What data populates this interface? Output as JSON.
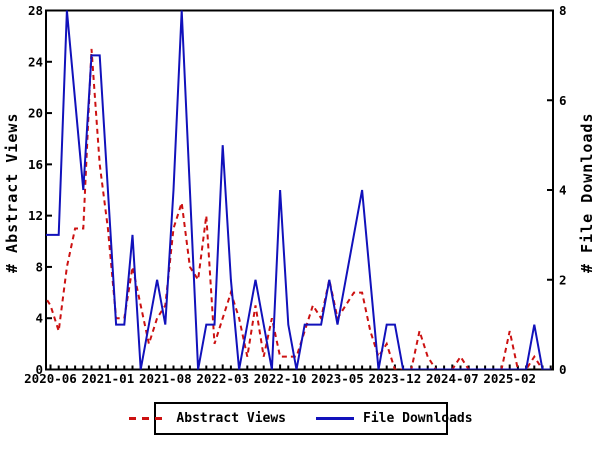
{
  "chart_data": {
    "type": "line",
    "title": "",
    "background_color": "#ffffff",
    "axis_color": "#000000",
    "grid": false,
    "x_axis": {
      "months": [
        "2020-05",
        "2020-06",
        "2020-07",
        "2020-08",
        "2020-09",
        "2020-10",
        "2020-11",
        "2020-12",
        "2021-01",
        "2021-02",
        "2021-03",
        "2021-04",
        "2021-05",
        "2021-06",
        "2021-07",
        "2021-08",
        "2021-09",
        "2021-10",
        "2021-11",
        "2021-12",
        "2022-01",
        "2022-02",
        "2022-03",
        "2022-04",
        "2022-05",
        "2022-06",
        "2022-07",
        "2022-08",
        "2022-09",
        "2022-10",
        "2022-11",
        "2022-12",
        "2023-01",
        "2023-02",
        "2023-03",
        "2023-04",
        "2023-05",
        "2023-06",
        "2023-07",
        "2023-08",
        "2023-09",
        "2023-10",
        "2023-11",
        "2023-12",
        "2024-01",
        "2024-02",
        "2024-03",
        "2024-04",
        "2024-05",
        "2024-06",
        "2024-07",
        "2024-08",
        "2024-09",
        "2024-10",
        "2024-11",
        "2024-12",
        "2025-01",
        "2025-02",
        "2025-03",
        "2025-04",
        "2025-05",
        "2025-06",
        "2025-07"
      ],
      "labeled_ticks": [
        "2020-06",
        "2021-01",
        "2021-08",
        "2022-03",
        "2022-10",
        "2023-05",
        "2023-12",
        "2024-07",
        "2025-02"
      ],
      "labeled_tick_indices": [
        1,
        8,
        15,
        22,
        29,
        36,
        43,
        50,
        57
      ]
    },
    "left_axis": {
      "label": "# Abstract Views",
      "min": 0,
      "max": 28,
      "ticks": [
        0,
        4,
        8,
        12,
        16,
        20,
        24,
        28
      ]
    },
    "right_axis": {
      "label": "# File Downloads",
      "min": 0,
      "max": 8,
      "ticks": [
        0,
        2,
        4,
        6,
        8
      ]
    },
    "series": [
      {
        "name": "Abstract Views",
        "axis": "left",
        "color": "#cc1111",
        "line_style": "dashed",
        "values": [
          6,
          5,
          3,
          8,
          11,
          11,
          25,
          16,
          11,
          4,
          4,
          8,
          5,
          2,
          4,
          5,
          11,
          13,
          8,
          7,
          12,
          2,
          4,
          6,
          4,
          1,
          5,
          1,
          4,
          1,
          1,
          1,
          3,
          5,
          4,
          7,
          4,
          5,
          6,
          6,
          3,
          1,
          2,
          0,
          0,
          0,
          3,
          1,
          0,
          0,
          0,
          1,
          0,
          0,
          0,
          0,
          0,
          3,
          0,
          0,
          1,
          0,
          0
        ]
      },
      {
        "name": "File Downloads",
        "axis": "right",
        "color": "#1111bb",
        "line_style": "solid",
        "values": [
          3,
          3,
          3,
          8,
          6,
          4,
          7,
          7,
          4,
          1,
          1,
          3,
          0,
          1,
          2,
          1,
          4,
          8,
          4,
          0,
          1,
          1,
          5,
          2,
          0,
          1,
          2,
          1,
          0,
          4,
          1,
          0,
          1,
          1,
          1,
          2,
          1,
          2,
          3,
          4,
          2,
          0,
          1,
          1,
          0,
          0,
          0,
          0,
          0,
          0,
          0,
          0,
          0,
          0,
          0,
          0,
          0,
          0,
          0,
          0,
          1,
          0,
          0
        ]
      }
    ],
    "legend": {
      "position": "bottom-center",
      "entries": [
        {
          "label": "Abstract Views",
          "color": "#cc1111",
          "style": "dashed"
        },
        {
          "label": "File Downloads",
          "color": "#1111bb",
          "style": "solid"
        }
      ]
    }
  }
}
